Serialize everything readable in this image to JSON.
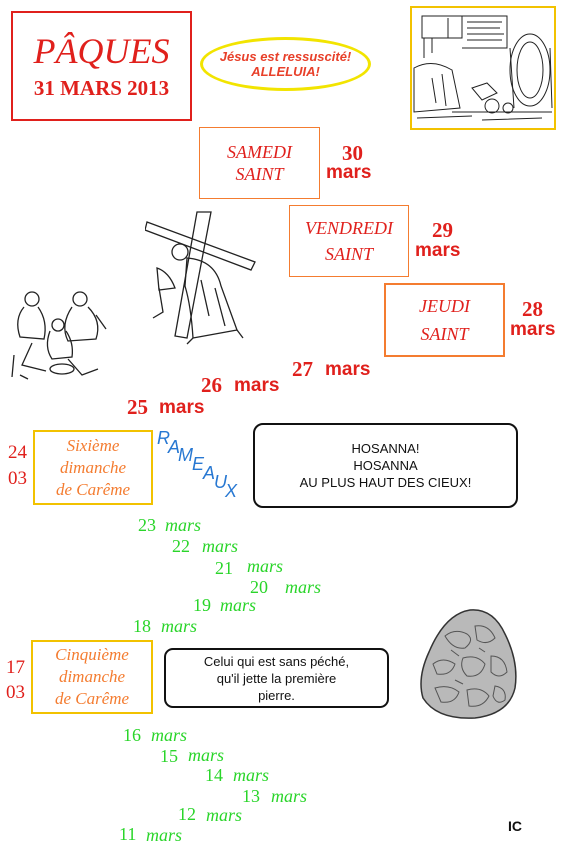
{
  "title": {
    "word": "PÂQUES",
    "date": "31 MARS 2013"
  },
  "oval": {
    "line1": "Jésus est ressuscité!",
    "line2": "ALLELUIA!"
  },
  "days": {
    "samedi": {
      "line1": "SAMEDI",
      "line2": "SAINT",
      "num": "30",
      "month": "mars"
    },
    "vendredi": {
      "line1": "VENDREDI",
      "line2": "SAINT",
      "num": "29",
      "month": "mars"
    },
    "jeudi": {
      "line1": "JEUDI",
      "line2": "SAINT",
      "num": "28",
      "month": "mars"
    },
    "d27": {
      "num": "27",
      "month": "mars"
    },
    "d26": {
      "num": "26",
      "month": "mars"
    },
    "d25": {
      "num": "25",
      "month": "mars"
    }
  },
  "rameaux": [
    "R",
    "A",
    "M",
    "E",
    "A",
    "U",
    "X"
  ],
  "sixieme": {
    "line1": "Sixième",
    "line2": "dimanche",
    "line3": "de Carême",
    "day": "24",
    "month": "03"
  },
  "hosanna": {
    "line1": "HOSANNA!",
    "line2": "HOSANNA",
    "line3": "AU PLUS HAUT DES CIEUX!"
  },
  "cinquieme": {
    "line1": "Cinquième",
    "line2": "dimanche",
    "line3": "de Carême",
    "day": "17",
    "month": "03"
  },
  "pierre": {
    "line1": "Celui qui est sans péché,",
    "line2": "qu'il jette la première",
    "line3": "pierre."
  },
  "green_dates": [
    {
      "num": "23",
      "month": "mars"
    },
    {
      "num": "22",
      "month": "mars"
    },
    {
      "num": "21",
      "month": "mars"
    },
    {
      "num": "20",
      "month": "mars"
    },
    {
      "num": "19",
      "month": "mars"
    },
    {
      "num": "18",
      "month": "mars"
    },
    {
      "num": "16",
      "month": "mars"
    },
    {
      "num": "15",
      "month": "mars"
    },
    {
      "num": "14",
      "month": "mars"
    },
    {
      "num": "13",
      "month": "mars"
    },
    {
      "num": "12",
      "month": "mars"
    },
    {
      "num": "11",
      "month": "mars"
    }
  ],
  "signature": "IC",
  "colors": {
    "red": "#e0201c",
    "green": "#2ad52a",
    "orange": "#f47c30",
    "blue": "#2878d2",
    "yellow": "#f2c200"
  }
}
